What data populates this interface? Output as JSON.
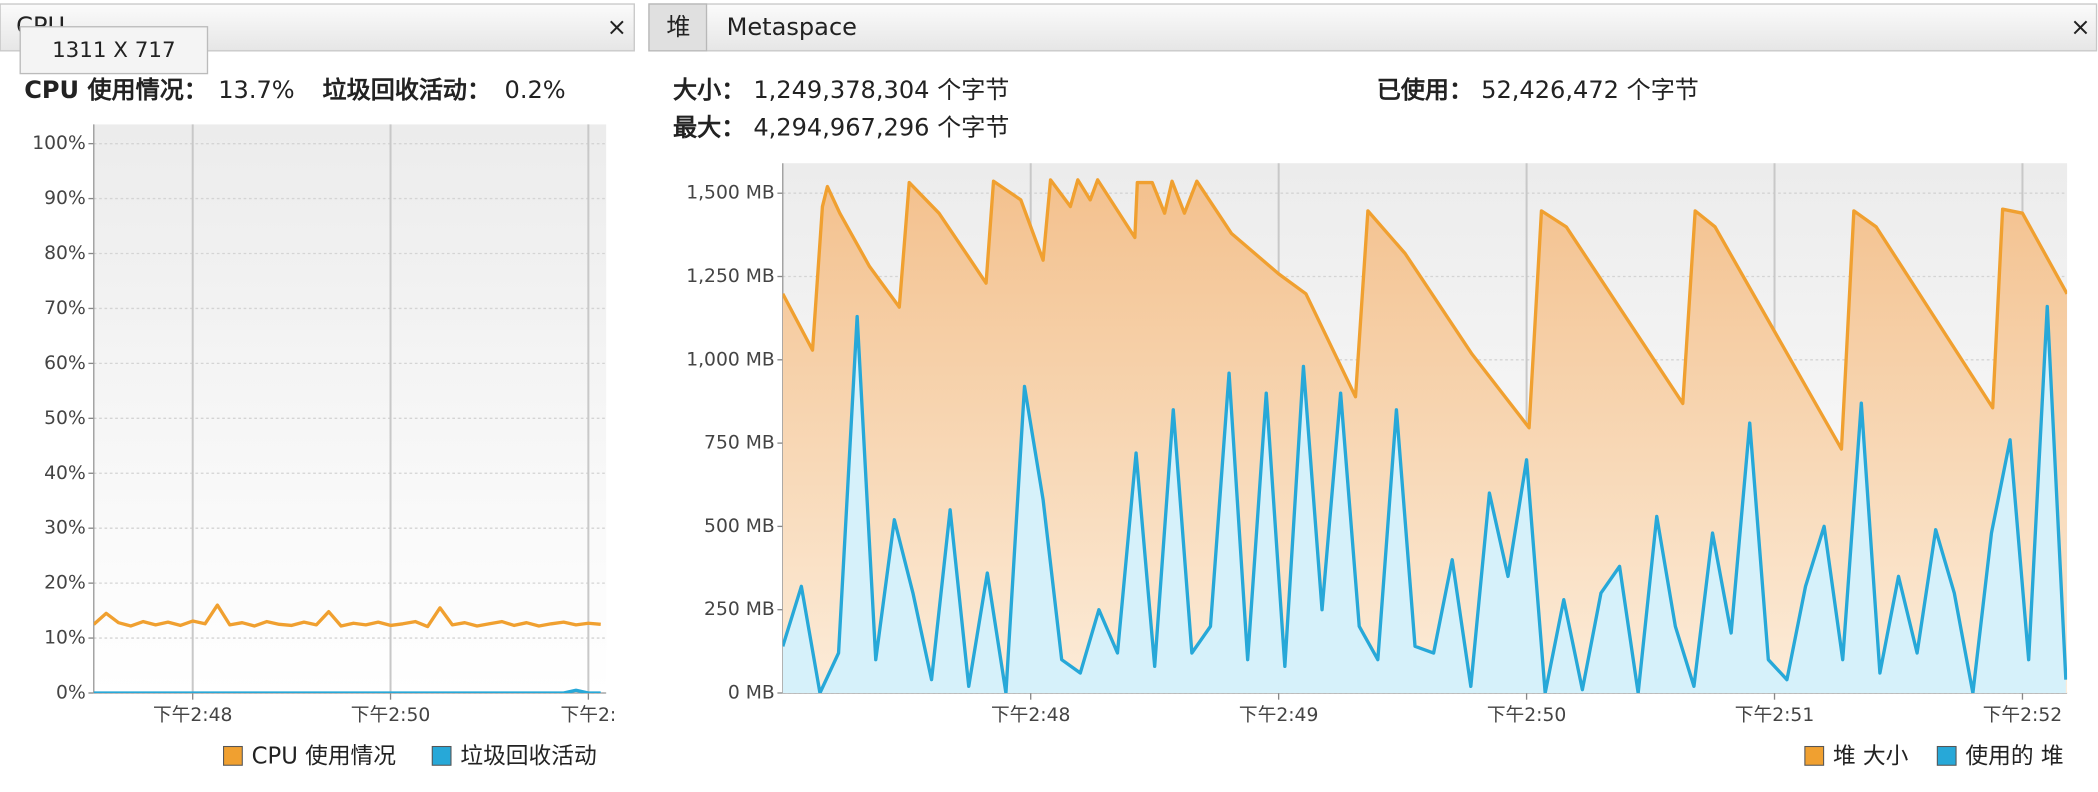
{
  "tooltip": "1311 X 717",
  "cpu_panel": {
    "tab": "CPU",
    "close": "×",
    "cpu_usage_label": "CPU 使用情况：",
    "cpu_usage_value": "13.7%",
    "gc_label": "垃圾回收活动：",
    "gc_value": "0.2%"
  },
  "heap_panel": {
    "tabs": [
      "堆",
      "Metaspace"
    ],
    "close": "×",
    "size_label": "大小：",
    "size_value": "1,249,378,304 个字节",
    "used_label": "已使用：",
    "used_value": "52,426,472 个字节",
    "max_label": "最大：",
    "max_value": "4,294,967,296 个字节"
  },
  "chart_data": [
    {
      "type": "line",
      "x": [
        47,
        47.125,
        47.25,
        47.375,
        47.5,
        47.625,
        47.75,
        47.875,
        48,
        48.125,
        48.25,
        48.375,
        48.5,
        48.625,
        48.75,
        48.875,
        49,
        49.125,
        49.25,
        49.375,
        49.5,
        49.625,
        49.75,
        49.875,
        50,
        50.125,
        50.25,
        50.375,
        50.5,
        50.625,
        50.75,
        50.875,
        51,
        51.125,
        51.25,
        51.375,
        51.5,
        51.625,
        51.75,
        51.875,
        52,
        52.125
      ],
      "xlim": [
        47,
        52.18
      ],
      "xticks": [
        {
          "value": 48,
          "label": "下午2:48"
        },
        {
          "value": 50,
          "label": "下午2:50"
        },
        {
          "value": 52,
          "label": "下午2:"
        }
      ],
      "ylim": [
        0,
        103.5
      ],
      "yticks": [
        {
          "value": 0,
          "label": "0%"
        },
        {
          "value": 10,
          "label": "10%"
        },
        {
          "value": 20,
          "label": "20%"
        },
        {
          "value": 30,
          "label": "30%"
        },
        {
          "value": 40,
          "label": "40%"
        },
        {
          "value": 50,
          "label": "50%"
        },
        {
          "value": 60,
          "label": "60%"
        },
        {
          "value": 70,
          "label": "70%"
        },
        {
          "value": 80,
          "label": "80%"
        },
        {
          "value": 90,
          "label": "90%"
        },
        {
          "value": 100,
          "label": "100%"
        }
      ],
      "grid": true,
      "series": [
        {
          "name": "CPU 使用情况",
          "color": "#f0a030",
          "values": [
            12.5,
            14.5,
            12.8,
            12.2,
            13,
            12.4,
            12.9,
            12.3,
            13.1,
            12.6,
            16,
            12.4,
            12.8,
            12.2,
            13,
            12.5,
            12.3,
            12.9,
            12.4,
            14.8,
            12.2,
            12.7,
            12.4,
            12.9,
            12.3,
            12.6,
            13,
            12.1,
            15.5,
            12.4,
            12.8,
            12.2,
            12.6,
            13,
            12.3,
            12.8,
            12.2,
            12.6,
            12.9,
            12.4,
            12.7,
            12.5
          ]
        },
        {
          "name": "垃圾回收活动",
          "color": "#27a8d8",
          "values": [
            0,
            0,
            0,
            0,
            0,
            0,
            0,
            0,
            0,
            0,
            0,
            0,
            0,
            0,
            0,
            0,
            0,
            0,
            0,
            0,
            0,
            0,
            0,
            0,
            0,
            0,
            0,
            0,
            0,
            0,
            0,
            0,
            0,
            0,
            0,
            0,
            0,
            0,
            0,
            0.5,
            0,
            0
          ]
        }
      ]
    },
    {
      "type": "area",
      "xlim": [
        47,
        52.18
      ],
      "xticks": [
        {
          "value": 48,
          "label": "下午2:48"
        },
        {
          "value": 49,
          "label": "下午2:49"
        },
        {
          "value": 50,
          "label": "下午2:50"
        },
        {
          "value": 51,
          "label": "下午2:51"
        },
        {
          "value": 52,
          "label": "下午2:52"
        }
      ],
      "ylim": [
        0,
        1590
      ],
      "yticks": [
        {
          "value": 0,
          "label": "0 MB"
        },
        {
          "value": 250,
          "label": "250 MB"
        },
        {
          "value": 500,
          "label": "500 MB"
        },
        {
          "value": 750,
          "label": "750 MB"
        },
        {
          "value": 1000,
          "label": "1,000 MB"
        },
        {
          "value": 1250,
          "label": "1,250 MB"
        },
        {
          "value": 1500,
          "label": "1,500 MB"
        }
      ],
      "grid": true,
      "series": [
        {
          "name": "堆 大小",
          "color": "#f0a030",
          "x": [
            47,
            47.12,
            47.16,
            47.18,
            47.23,
            47.35,
            47.47,
            47.51,
            47.63,
            47.74,
            47.82,
            47.85,
            47.96,
            48.05,
            48.08,
            48.16,
            48.19,
            48.24,
            48.27,
            48.42,
            48.43,
            48.49,
            48.54,
            48.57,
            48.62,
            48.67,
            48.81,
            49,
            49.11,
            49.31,
            49.36,
            49.51,
            49.78,
            50.01,
            50.06,
            50.16,
            50.63,
            50.68,
            50.76,
            51.27,
            51.32,
            51.41,
            51.88,
            51.92,
            52,
            52.18
          ],
          "values": [
            1198,
            1029,
            1460,
            1520,
            1440,
            1280,
            1158,
            1532,
            1440,
            1319,
            1230,
            1536,
            1480,
            1299,
            1540,
            1460,
            1540,
            1480,
            1540,
            1367,
            1532,
            1532,
            1440,
            1536,
            1440,
            1536,
            1379,
            1258,
            1198,
            889,
            1447,
            1319,
            1017,
            796,
            1447,
            1399,
            869,
            1447,
            1399,
            732,
            1447,
            1399,
            856,
            1452,
            1440,
            1198
          ]
        },
        {
          "name": "使用的 堆",
          "color": "#27a8d8",
          "x": [
            47,
            47.075,
            47.15,
            47.225,
            47.3,
            47.375,
            47.45,
            47.525,
            47.6,
            47.675,
            47.75,
            47.825,
            47.9,
            47.975,
            48.05,
            48.125,
            48.2,
            48.275,
            48.35,
            48.425,
            48.5,
            48.575,
            48.65,
            48.725,
            48.8,
            48.875,
            48.95,
            49.025,
            49.1,
            49.175,
            49.25,
            49.325,
            49.4,
            49.475,
            49.55,
            49.625,
            49.7,
            49.775,
            49.85,
            49.925,
            50,
            50.075,
            50.15,
            50.225,
            50.3,
            50.375,
            50.45,
            50.525,
            50.6,
            50.675,
            50.75,
            50.825,
            50.9,
            50.975,
            51.05,
            51.125,
            51.2,
            51.275,
            51.35,
            51.425,
            51.5,
            51.575,
            51.65,
            51.725,
            51.8,
            51.875,
            51.95,
            52.025,
            52.1,
            52.175
          ],
          "values": [
            140,
            320,
            0,
            120,
            1130,
            100,
            520,
            300,
            40,
            550,
            20,
            360,
            0,
            920,
            580,
            100,
            60,
            250,
            120,
            720,
            80,
            850,
            120,
            200,
            960,
            100,
            900,
            80,
            980,
            250,
            900,
            200,
            100,
            850,
            140,
            120,
            400,
            20,
            600,
            350,
            700,
            0,
            280,
            10,
            300,
            380,
            0,
            530,
            200,
            20,
            480,
            180,
            810,
            100,
            40,
            320,
            500,
            100,
            870,
            60,
            350,
            120,
            490,
            300,
            0,
            480,
            760,
            100,
            1160,
            40
          ]
        }
      ]
    }
  ]
}
